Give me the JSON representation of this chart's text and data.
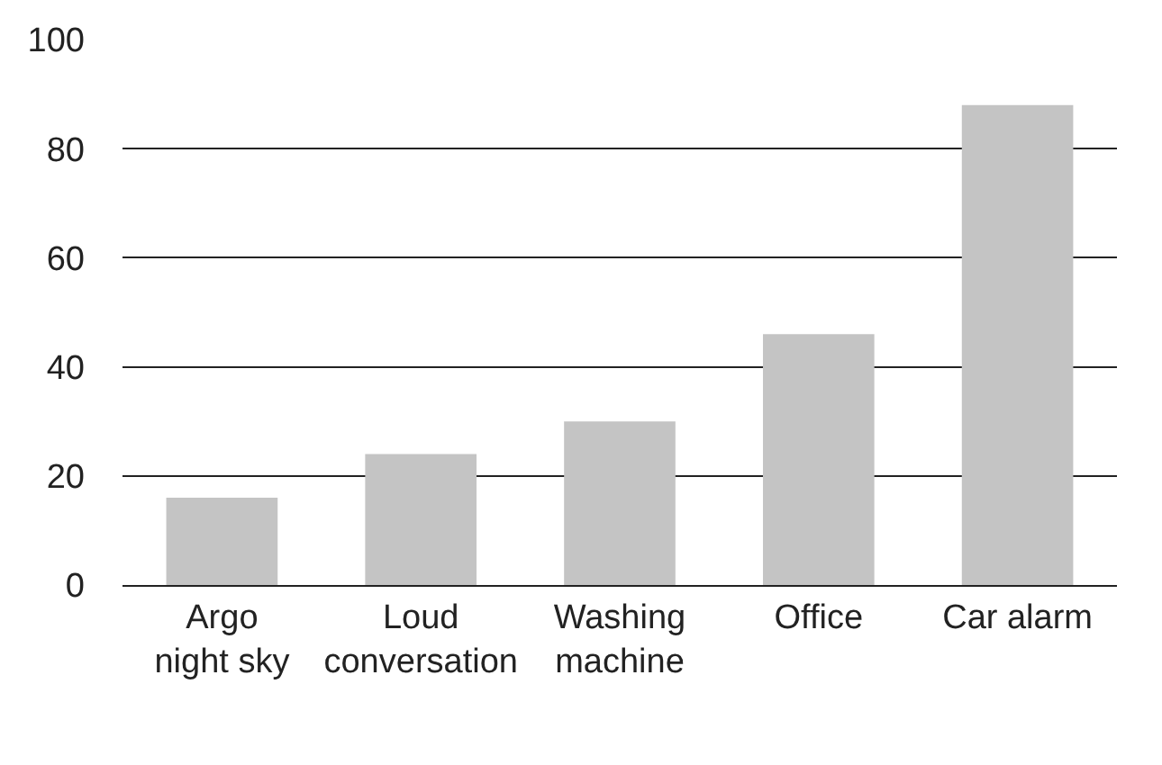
{
  "chart_data": {
    "type": "bar",
    "categories": [
      "Argo night sky",
      "Loud conversation",
      "Washing machine",
      "Office",
      "Car alarm"
    ],
    "values": [
      16,
      24,
      30,
      46,
      88
    ],
    "color": "#c4c4c4",
    "ylim": [
      0,
      100
    ],
    "yticks": [
      0,
      20,
      40,
      60,
      80,
      100
    ],
    "grid": "y",
    "legend": false
  }
}
